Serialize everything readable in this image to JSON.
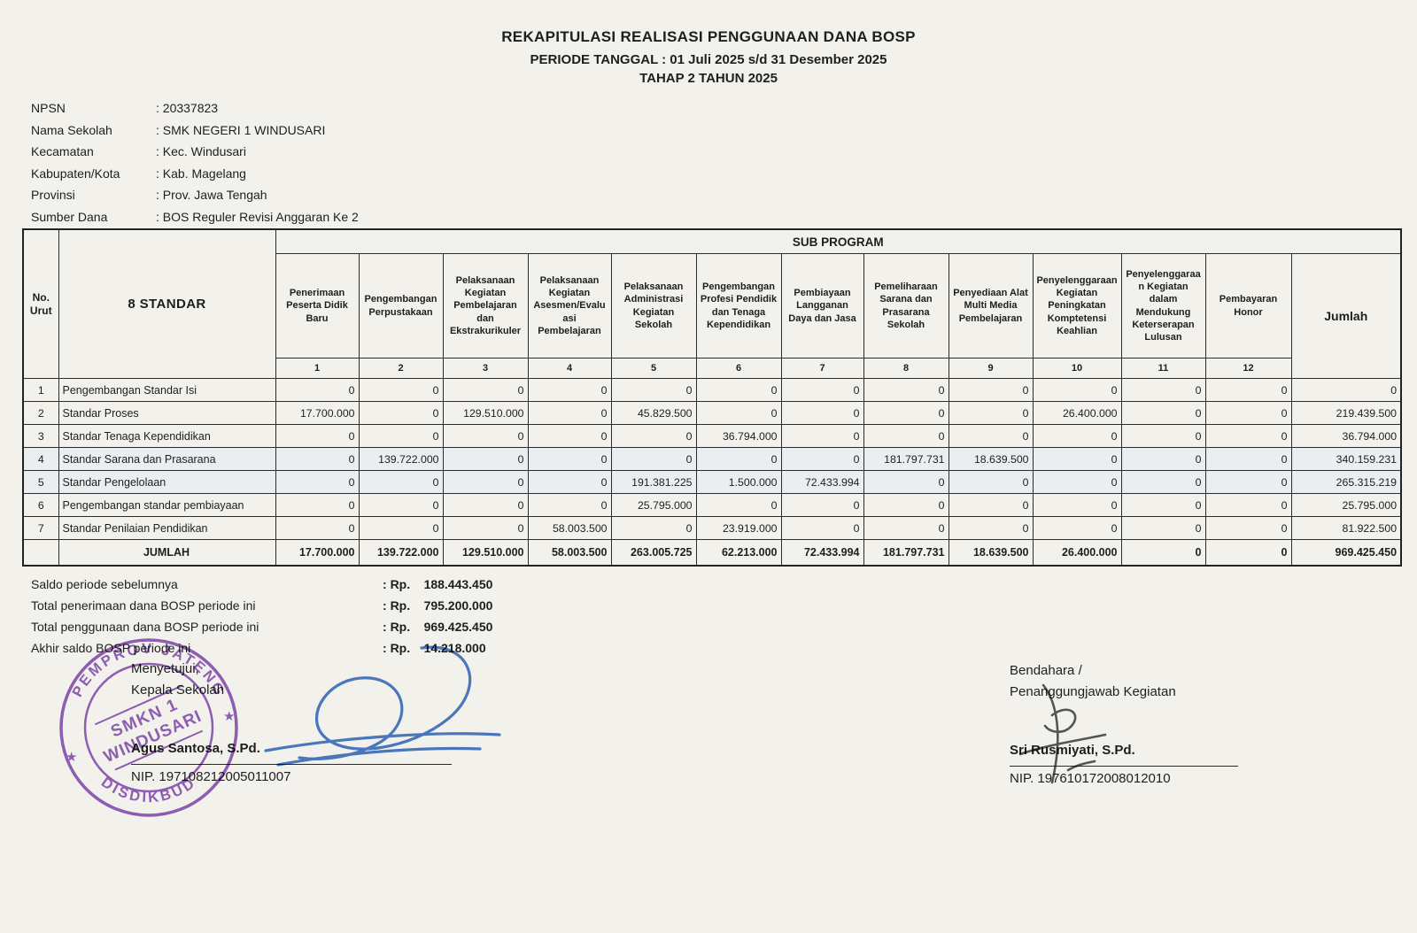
{
  "title": {
    "line1": "REKAPITULASI REALISASI PENGGUNAAN DANA BOSP",
    "line2": "PERIODE TANGGAL : 01 Juli 2025 s/d 31 Desember 2025",
    "line3": "TAHAP 2 TAHUN 2025"
  },
  "school_info": [
    {
      "label": "NPSN",
      "value": "20337823"
    },
    {
      "label": "Nama Sekolah",
      "value": "SMK NEGERI 1 WINDUSARI"
    },
    {
      "label": "Kecamatan",
      "value": "Kec. Windusari"
    },
    {
      "label": "Kabupaten/Kota",
      "value": "Kab. Magelang"
    },
    {
      "label": "Provinsi",
      "value": "Prov. Jawa Tengah"
    },
    {
      "label": "Sumber Dana",
      "value": "BOS Reguler Revisi Anggaran Ke 2"
    }
  ],
  "table": {
    "corner_no": "No. Urut",
    "corner_standar": "8 STANDAR",
    "group_header": "SUB PROGRAM",
    "jumlah_header": "Jumlah",
    "sub_programs": [
      {
        "num": "1",
        "label": "Penerimaan Peserta Didik Baru"
      },
      {
        "num": "2",
        "label": "Pengembangan Perpustakaan"
      },
      {
        "num": "3",
        "label": "Pelaksanaan Kegiatan Pembelajaran dan Ekstrakurikuler"
      },
      {
        "num": "4",
        "label": "Pelaksanaan Kegiatan Asesmen/Evaluasi Pembelajaran"
      },
      {
        "num": "5",
        "label": "Pelaksanaan Administrasi Kegiatan Sekolah"
      },
      {
        "num": "6",
        "label": "Pengembangan Profesi Pendidik dan Tenaga Kependidikan"
      },
      {
        "num": "7",
        "label": "Pembiayaan Langganan Daya dan Jasa"
      },
      {
        "num": "8",
        "label": "Pemeliharaan Sarana dan Prasarana Sekolah"
      },
      {
        "num": "9",
        "label": "Penyediaan Alat Multi Media Pembelajaran"
      },
      {
        "num": "10",
        "label": "Penyelenggaraan Kegiatan Peningkatan Komptetensi Keahlian"
      },
      {
        "num": "11",
        "label": "Penyelenggaraan Kegiatan dalam Mendukung Keterserapan Lulusan"
      },
      {
        "num": "12",
        "label": "Pembayaran Honor"
      }
    ],
    "rows": [
      {
        "no": "1",
        "name": "Pengembangan Standar Isi",
        "values": [
          "0",
          "0",
          "0",
          "0",
          "0",
          "0",
          "0",
          "0",
          "0",
          "0",
          "0",
          "0"
        ],
        "total": "0"
      },
      {
        "no": "2",
        "name": "Standar Proses",
        "values": [
          "17.700.000",
          "0",
          "129.510.000",
          "0",
          "45.829.500",
          "0",
          "0",
          "0",
          "0",
          "26.400.000",
          "0",
          "0"
        ],
        "total": "219.439.500"
      },
      {
        "no": "3",
        "name": "Standar Tenaga Kependidikan",
        "values": [
          "0",
          "0",
          "0",
          "0",
          "0",
          "36.794.000",
          "0",
          "0",
          "0",
          "0",
          "0",
          "0"
        ],
        "total": "36.794.000"
      },
      {
        "no": "4",
        "name": "Standar Sarana dan Prasarana",
        "values": [
          "0",
          "139.722.000",
          "0",
          "0",
          "0",
          "0",
          "0",
          "181.797.731",
          "18.639.500",
          "0",
          "0",
          "0"
        ],
        "total": "340.159.231"
      },
      {
        "no": "5",
        "name": "Standar Pengelolaan",
        "values": [
          "0",
          "0",
          "0",
          "0",
          "191.381.225",
          "1.500.000",
          "72.433.994",
          "0",
          "0",
          "0",
          "0",
          "0"
        ],
        "total": "265.315.219"
      },
      {
        "no": "6",
        "name": "Pengembangan standar pembiayaan",
        "values": [
          "0",
          "0",
          "0",
          "0",
          "25.795.000",
          "0",
          "0",
          "0",
          "0",
          "0",
          "0",
          "0"
        ],
        "total": "25.795.000"
      },
      {
        "no": "7",
        "name": "Standar Penilaian Pendidikan",
        "values": [
          "0",
          "0",
          "0",
          "58.003.500",
          "0",
          "23.919.000",
          "0",
          "0",
          "0",
          "0",
          "0",
          "0"
        ],
        "total": "81.922.500"
      }
    ],
    "footer": {
      "label": "JUMLAH",
      "values": [
        "17.700.000",
        "139.722.000",
        "129.510.000",
        "58.003.500",
        "263.005.725",
        "62.213.000",
        "72.433.994",
        "181.797.731",
        "18.639.500",
        "26.400.000",
        "0",
        "0"
      ],
      "total": "969.425.450"
    }
  },
  "summary": [
    {
      "label": "Saldo periode sebelumnya",
      "currency": "Rp.",
      "value": "188.443.450"
    },
    {
      "label": "Total penerimaan dana BOSP periode ini",
      "currency": "Rp.",
      "value": "795.200.000"
    },
    {
      "label": "Total penggunaan dana BOSP periode ini",
      "currency": "Rp.",
      "value": "969.425.450"
    },
    {
      "label": "Akhir saldo BOSP periode ini",
      "currency": "Rp.",
      "value": "14.218.000"
    }
  ],
  "signatures": {
    "left": {
      "line1": "Menyetujui,",
      "line2": "Kepala Sekolah",
      "name": "Agus Santosa, S.Pd.",
      "nip": "NIP. 197108212005011007"
    },
    "right": {
      "line1": "Bendahara /",
      "line2": "Penanggungjawab Kegiatan",
      "name": "Sri Rusmiyati, S.Pd.",
      "nip": "NIP. 197610172008012010"
    }
  },
  "stamp": {
    "arc_top": "PEMPROV JATENG",
    "arc_bottom": "DISDIKBUD",
    "center_line1": "SMKN 1",
    "center_line2": "WINDUSARI",
    "color": "#7d3fb2"
  },
  "colors": {
    "paper": "#f2f1ec",
    "ink": "#1e1e1e",
    "stamp": "#7d3fb2",
    "signature_blue": "#3a6fc4"
  }
}
